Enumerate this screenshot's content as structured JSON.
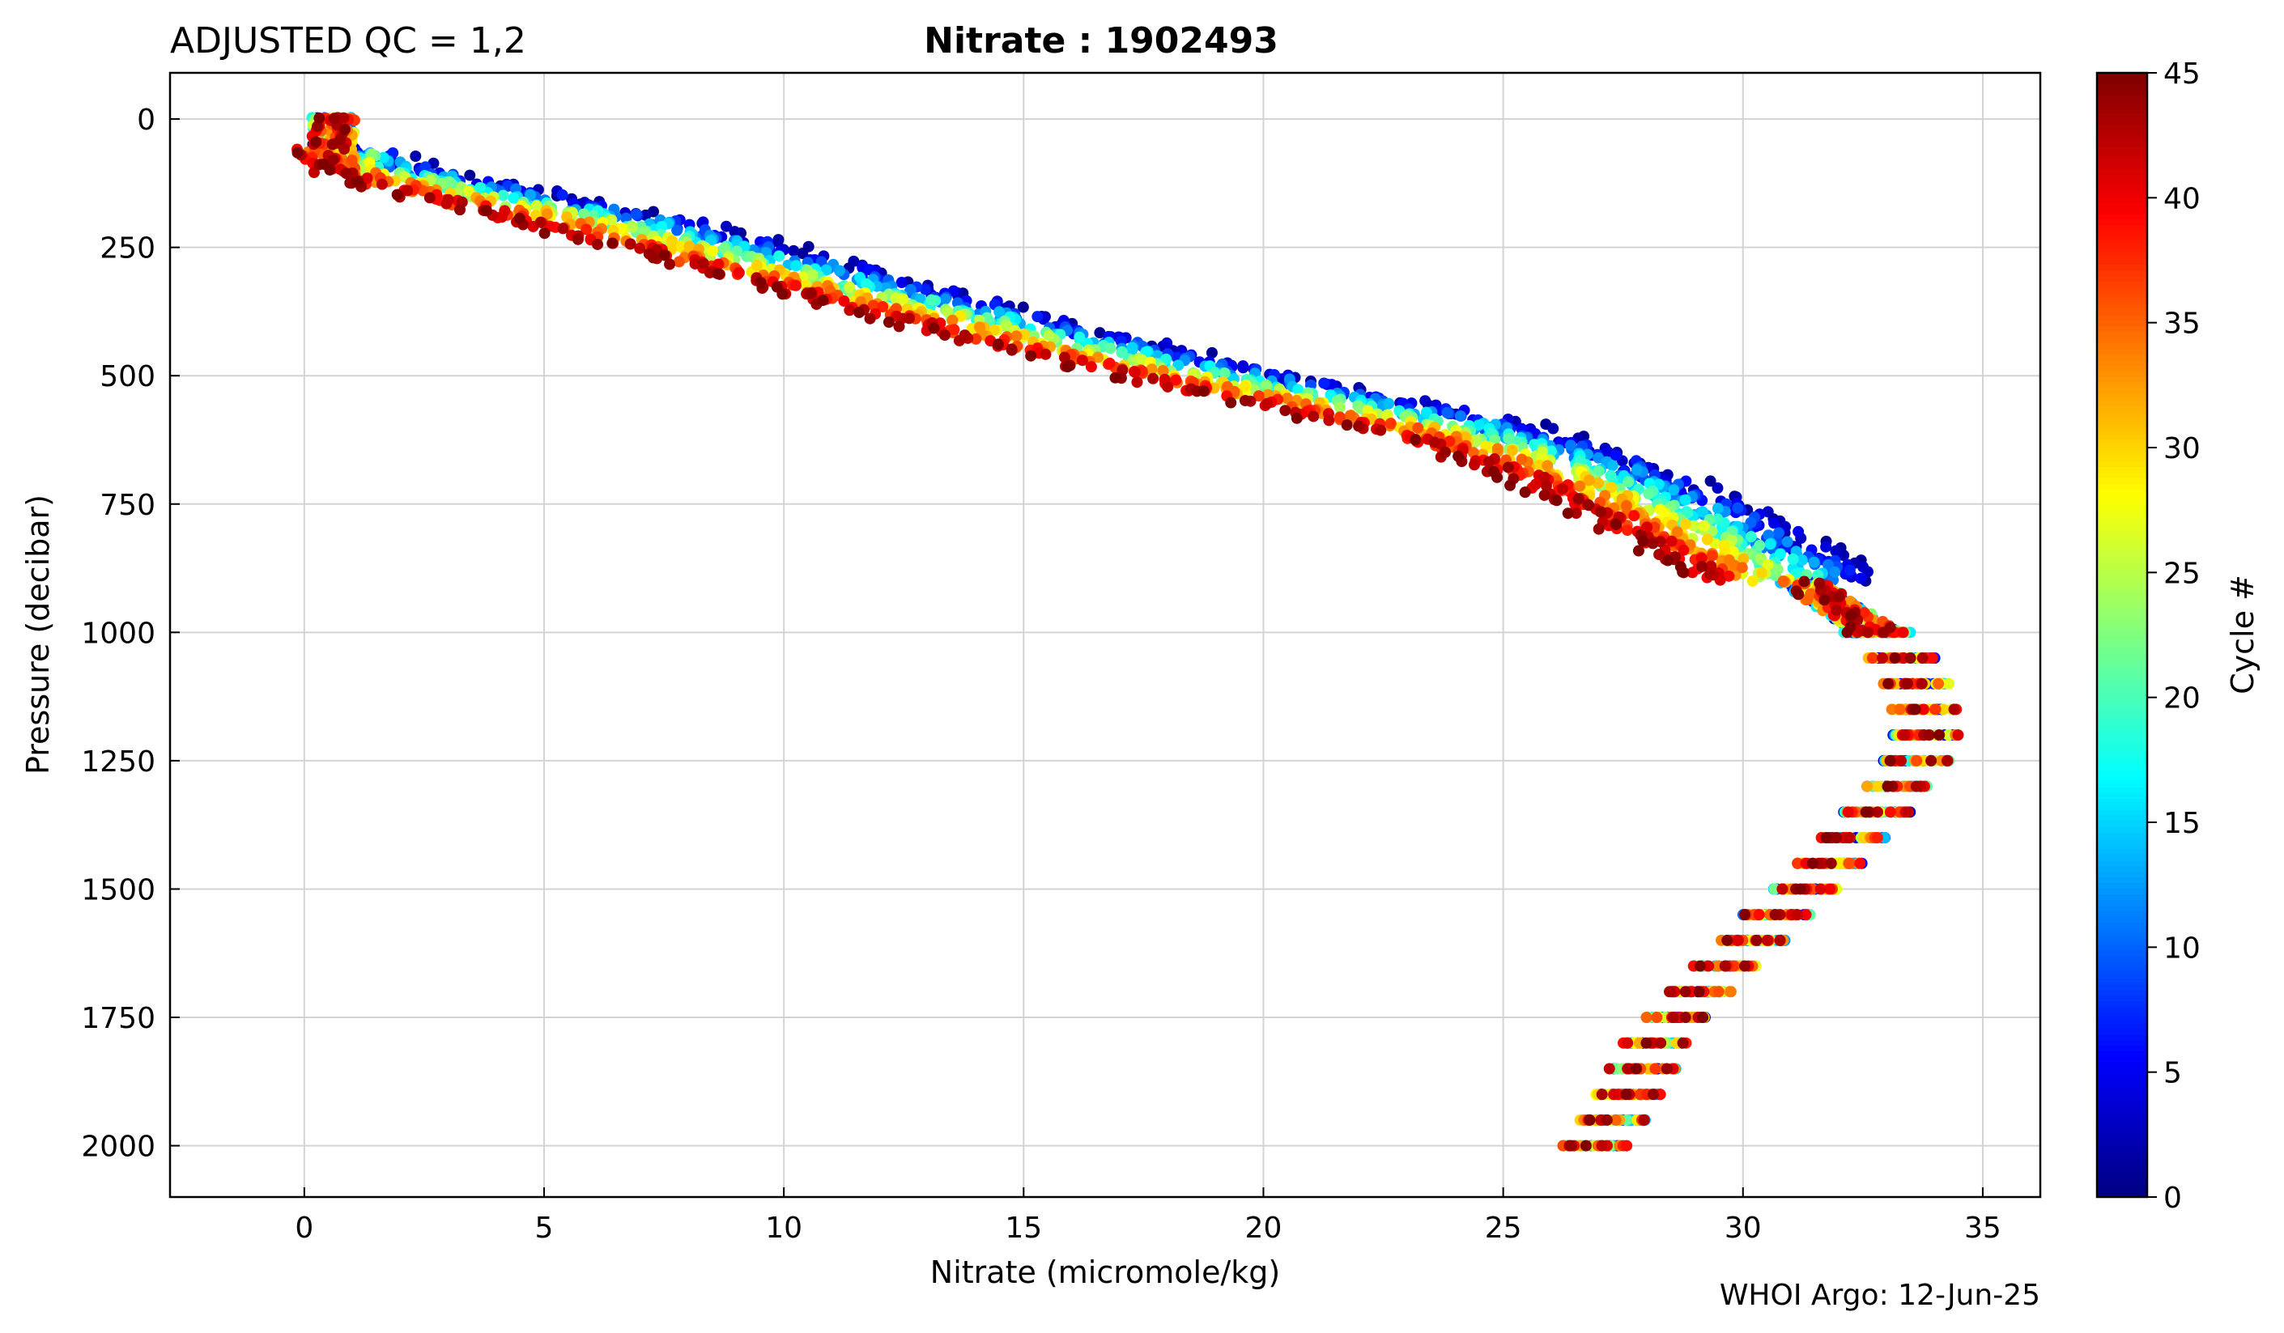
{
  "chart_data": {
    "type": "scatter",
    "title_left": "ADJUSTED QC = 1,2",
    "title": "Nitrate : 1902493",
    "xlabel": "Nitrate  (micromole/kg)",
    "ylabel": "Pressure  (decibar)",
    "colorbar_label": "Cycle #",
    "credit": "WHOI Argo: 12-Jun-25",
    "xlim": [
      -2.8,
      36.2
    ],
    "ylim": [
      2100,
      -90
    ],
    "y_inverted": true,
    "grid": true,
    "xticks": [
      0,
      5,
      10,
      15,
      20,
      25,
      30,
      35
    ],
    "yticks": [
      0,
      250,
      500,
      750,
      1000,
      1250,
      1500,
      1750,
      2000
    ],
    "colorbar": {
      "colormap": "jet",
      "min": 0,
      "max": 45,
      "ticks": [
        0,
        5,
        10,
        15,
        20,
        25,
        30,
        35,
        40,
        45
      ]
    },
    "cycle_range": [
      1,
      45
    ],
    "profile_points": [
      {
        "p": 0,
        "n": 0.6
      },
      {
        "p": 50,
        "n": 0.7
      },
      {
        "p": 100,
        "n": 1.6
      },
      {
        "p": 150,
        "n": 4.0
      },
      {
        "p": 200,
        "n": 6.5
      },
      {
        "p": 250,
        "n": 8.5
      },
      {
        "p": 300,
        "n": 10.5
      },
      {
        "p": 350,
        "n": 12.5
      },
      {
        "p": 400,
        "n": 14.5
      },
      {
        "p": 450,
        "n": 16.7
      },
      {
        "p": 500,
        "n": 19.0
      },
      {
        "p": 550,
        "n": 21.5
      },
      {
        "p": 600,
        "n": 24.0
      },
      {
        "p": 650,
        "n": 25.8
      },
      {
        "p": 700,
        "n": 27.2
      },
      {
        "p": 750,
        "n": 28.3
      },
      {
        "p": 800,
        "n": 29.4
      },
      {
        "p": 850,
        "n": 30.3
      },
      {
        "p": 900,
        "n": 31.2
      },
      {
        "p": 950,
        "n": 32.0
      },
      {
        "p": 1000,
        "n": 32.8
      },
      {
        "p": 1050,
        "n": 33.3
      },
      {
        "p": 1100,
        "n": 33.6
      },
      {
        "p": 1150,
        "n": 33.8
      },
      {
        "p": 1200,
        "n": 33.8
      },
      {
        "p": 1250,
        "n": 33.6
      },
      {
        "p": 1300,
        "n": 33.2
      },
      {
        "p": 1350,
        "n": 32.8
      },
      {
        "p": 1400,
        "n": 32.3
      },
      {
        "p": 1450,
        "n": 31.8
      },
      {
        "p": 1500,
        "n": 31.3
      },
      {
        "p": 1550,
        "n": 30.7
      },
      {
        "p": 1600,
        "n": 30.2
      },
      {
        "p": 1650,
        "n": 29.6
      },
      {
        "p": 1700,
        "n": 29.1
      },
      {
        "p": 1750,
        "n": 28.6
      },
      {
        "p": 1800,
        "n": 28.2
      },
      {
        "p": 1850,
        "n": 27.9
      },
      {
        "p": 1900,
        "n": 27.6
      },
      {
        "p": 1950,
        "n": 27.3
      },
      {
        "p": 2000,
        "n": 26.9
      }
    ]
  }
}
